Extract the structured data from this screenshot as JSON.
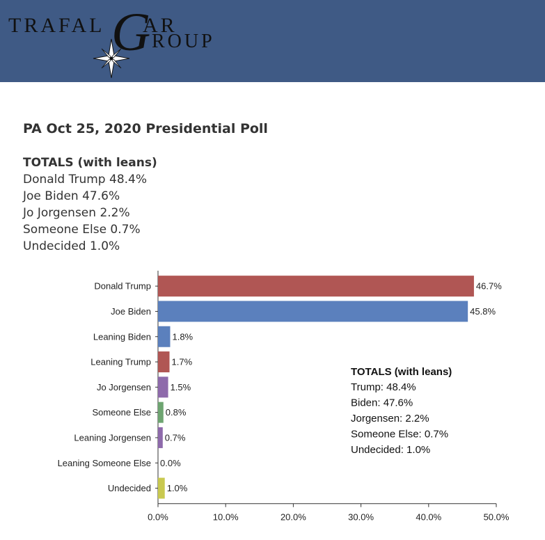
{
  "header": {
    "brand_word1": "TRAFAL",
    "brand_g": "G",
    "brand_word2": "AR",
    "brand_word3": "ROUP",
    "bg_color": "#3f5a85"
  },
  "poll": {
    "title": "PA Oct 25, 2020 Presidential Poll",
    "totals_heading": "TOTALS (with leans)",
    "totals": [
      "Donald Trump 48.4%",
      "Joe Biden 47.6%",
      "Jo Jorgensen 2.2%",
      "Someone Else 0.7%",
      "Undecided 1.0%"
    ]
  },
  "chart_data": {
    "type": "bar",
    "orientation": "horizontal",
    "categories": [
      "Donald Trump",
      "Joe Biden",
      "Leaning Biden",
      "Leaning Trump",
      "Jo Jorgensen",
      "Someone Else",
      "Leaning Jorgensen",
      "Leaning Someone Else",
      "Undecided"
    ],
    "values": [
      46.7,
      45.8,
      1.8,
      1.7,
      1.5,
      0.8,
      0.7,
      0.0,
      1.0
    ],
    "value_labels": [
      "46.7%",
      "45.8%",
      "1.8%",
      "1.7%",
      "1.5%",
      "0.8%",
      "0.7%",
      "0.0%",
      "1.0%"
    ],
    "colors": [
      "#b05654",
      "#5b80bd",
      "#5b80bd",
      "#b05654",
      "#8e6aab",
      "#6ea571",
      "#8e6aab",
      "#8e6aab",
      "#c9c950"
    ],
    "xlim": [
      0,
      50
    ],
    "xticks": [
      "0.0%",
      "10.0%",
      "20.0%",
      "30.0%",
      "40.0%",
      "50.0%"
    ],
    "grid": false,
    "annotation": {
      "heading": "TOTALS (with leans)",
      "lines": [
        "Trump: 48.4%",
        "Biden: 47.6%",
        "Jorgensen: 2.2%",
        "Someone Else: 0.7%",
        "Undecided: 1.0%"
      ]
    }
  }
}
